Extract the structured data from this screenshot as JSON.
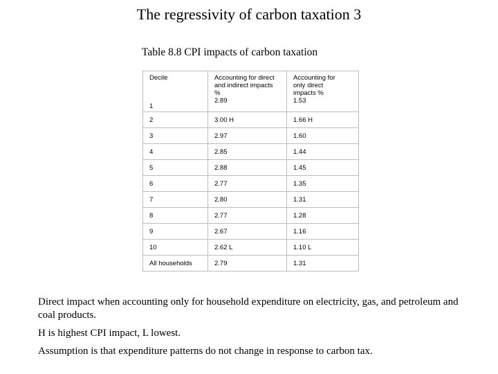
{
  "title": "The regressivity of carbon taxation 3",
  "caption": "Table 8.8 CPI impacts of carbon taxation",
  "table": {
    "header": {
      "col1": "Decile",
      "col2_lines": [
        "Accounting for direct",
        "and indirect impacts",
        "%"
      ],
      "col3_lines": [
        "Accounting for",
        "only direct",
        "impacts %"
      ]
    },
    "rows": [
      {
        "decile": "1",
        "both": "2.89",
        "direct": "1.53"
      },
      {
        "decile": "2",
        "both": "3.00 H",
        "direct": "1.66 H"
      },
      {
        "decile": "3",
        "both": "2.97",
        "direct": "1.60"
      },
      {
        "decile": "4",
        "both": "2.85",
        "direct": "1.44"
      },
      {
        "decile": "5",
        "both": "2.88",
        "direct": "1.45"
      },
      {
        "decile": "6",
        "both": "2.77",
        "direct": "1.35"
      },
      {
        "decile": "7",
        "both": "2.80",
        "direct": "1.31"
      },
      {
        "decile": "8",
        "both": "2.77",
        "direct": "1.28"
      },
      {
        "decile": "9",
        "both": "2.67",
        "direct": "1.16"
      },
      {
        "decile": "10",
        "both": "2.62 L",
        "direct": "1.10 L"
      },
      {
        "decile": "All households",
        "both": "2.79",
        "direct": "1.31"
      }
    ]
  },
  "notes": [
    "Direct impact when accounting only for household expenditure on electricity, gas, and petroleum and coal products.",
    "H is highest CPI impact, L lowest.",
    "Assumption is that expenditure patterns do not change in response to carbon tax."
  ]
}
